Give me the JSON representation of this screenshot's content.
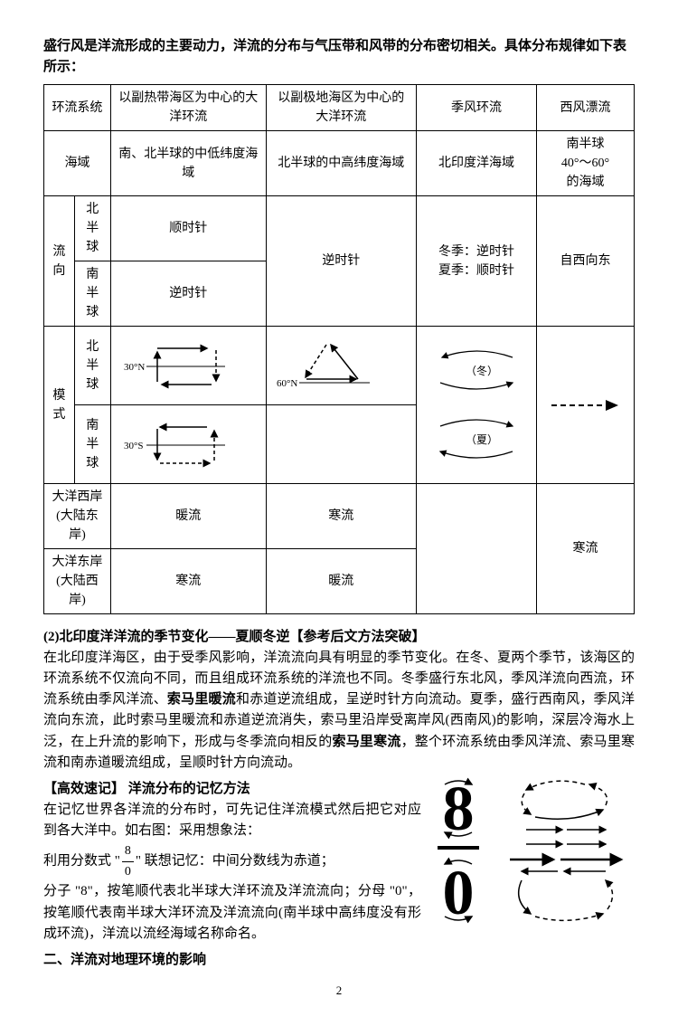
{
  "intro": "盛行风是洋流形成的主要动力，洋流的分布与气压带和风带的分布密切相关。具体分布规律如下表所示：",
  "table": {
    "headers": {
      "col1": "环流系统",
      "col2": "以副热带海区为中心的大洋环流",
      "col3": "以副极地海区为中心的大洋环流",
      "col4": "季风环流",
      "col5": "西风漂流"
    },
    "row_region": {
      "label": "海域",
      "c2": "南、北半球的中低纬度海域",
      "c3": "北半球的中高纬度海域",
      "c4": "北印度洋海域",
      "c5": "南半球\n40°～60°\n的海域"
    },
    "row_dir_label": "流向",
    "row_dir_n": {
      "label": "北半球",
      "c2": "顺时针",
      "c3": "逆时针"
    },
    "row_dir_s": {
      "label": "南半球",
      "c2": "逆时针"
    },
    "row_dir_monsoon": "冬季：逆时针\n夏季：顺时针",
    "row_dir_west": "自西向东",
    "row_pattern_label": "模式",
    "row_pattern_n": "北半球",
    "row_pattern_s": "南半球",
    "diag_n_label": "30°N",
    "diag_s_label": "30°S",
    "diag_subpolar_label": "60°N",
    "diag_monsoon_winter": "（冬）",
    "diag_monsoon_summer": "（夏）",
    "row_west_coast": {
      "label1": "大洋西岸",
      "label2": "(大陆东岸)",
      "c2": "暖流",
      "c3": "寒流"
    },
    "row_east_coast": {
      "label1": "大洋东岸",
      "label2": "(大陆西岸)",
      "c2": "寒流",
      "c3": "暖流",
      "c5": "寒流"
    }
  },
  "section2_title": "(2)北印度洋洋流的季节变化——夏顺冬逆【参考后文方法突破】",
  "section2_body": "在北印度洋海区，由于受季风影响，洋流流向具有明显的季节变化。在冬、夏两个季节，该海区的环流系统不仅流向不同，而且组成环流系统的洋流也不同。冬季盛行东北风，季风洋流向西流，环流系统由季风洋流、索马里暖流和赤道逆流组成，呈逆时针方向流动。夏季，盛行西南风，季风洋流向东流，此时索马里暖流和赤道逆流消失，索马里沿岸受离岸风(西南风)的影响，深层冷海水上泛，在上升流的影响下，形成与冬季流向相反的索马里寒流，整个环流系统由季风洋流、索马里寒流和南赤道暖流组成，呈顺时针方向流动。",
  "section2_bold1": "索马里暖流",
  "section2_bold2": "索马里寒流",
  "memo_title": "【高效速记】 洋流分布的记忆方法",
  "memo_body1": "在记忆世界各洋流的分布时，可先记住洋流模式然后把它对应到各大洋中。如右图：采用想象法：",
  "memo_body2_pre": "利用分数式 \"",
  "memo_frac_num": "8",
  "memo_frac_den": "0",
  "memo_body2_post": "\" 联想记忆：中间分数线为赤道；",
  "memo_body3": "分子 \"8\"，按笔顺代表北半球大洋环流及洋流流向；分母 \"0\"，按笔顺代表南半球大洋环流及洋流流向(南半球中高纬度没有形成环流)，洋流以流经海域名称命名。",
  "section3_title": "二、洋流对地理环境的影响",
  "page_number": "2",
  "colors": {
    "text": "#000000",
    "border": "#000000",
    "background": "#ffffff"
  }
}
